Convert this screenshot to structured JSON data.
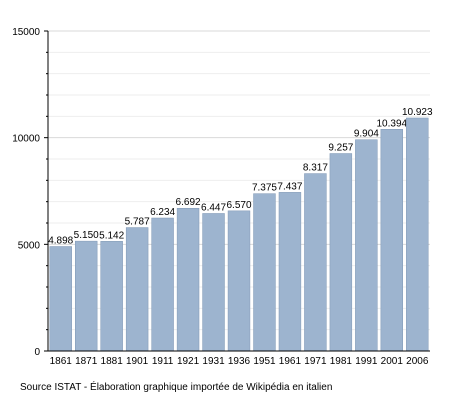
{
  "chart_data": {
    "type": "bar",
    "categories": [
      "1861",
      "1871",
      "1881",
      "1901",
      "1911",
      "1921",
      "1931",
      "1936",
      "1951",
      "1961",
      "1971",
      "1981",
      "1991",
      "2001",
      "2006"
    ],
    "values": [
      4898,
      5150,
      5142,
      5787,
      6234,
      6692,
      6447,
      6570,
      7375,
      7437,
      8317,
      9257,
      9904,
      10394,
      10923
    ],
    "value_labels": [
      "4.898",
      "5.150",
      "5.142",
      "5.787",
      "6.234",
      "6.692",
      "6.447",
      "6.570",
      "7.375",
      "7.437",
      "8.317",
      "9.257",
      "9.904",
      "10.394",
      "10.923"
    ],
    "ylim": [
      0,
      15000
    ],
    "y_ticks": [
      0,
      5000,
      10000,
      15000
    ],
    "y_tick_labels": [
      "0",
      "5000",
      "10000",
      "15000"
    ],
    "grid": true,
    "bar_color": "#9db4cf",
    "bar_edge_color": "#7f97b4",
    "grid_color": "#d9d9d9",
    "title": "",
    "xlabel": "",
    "ylabel": ""
  },
  "source_note": "Source ISTAT - Élaboration graphique importée de Wikipédia en italien"
}
